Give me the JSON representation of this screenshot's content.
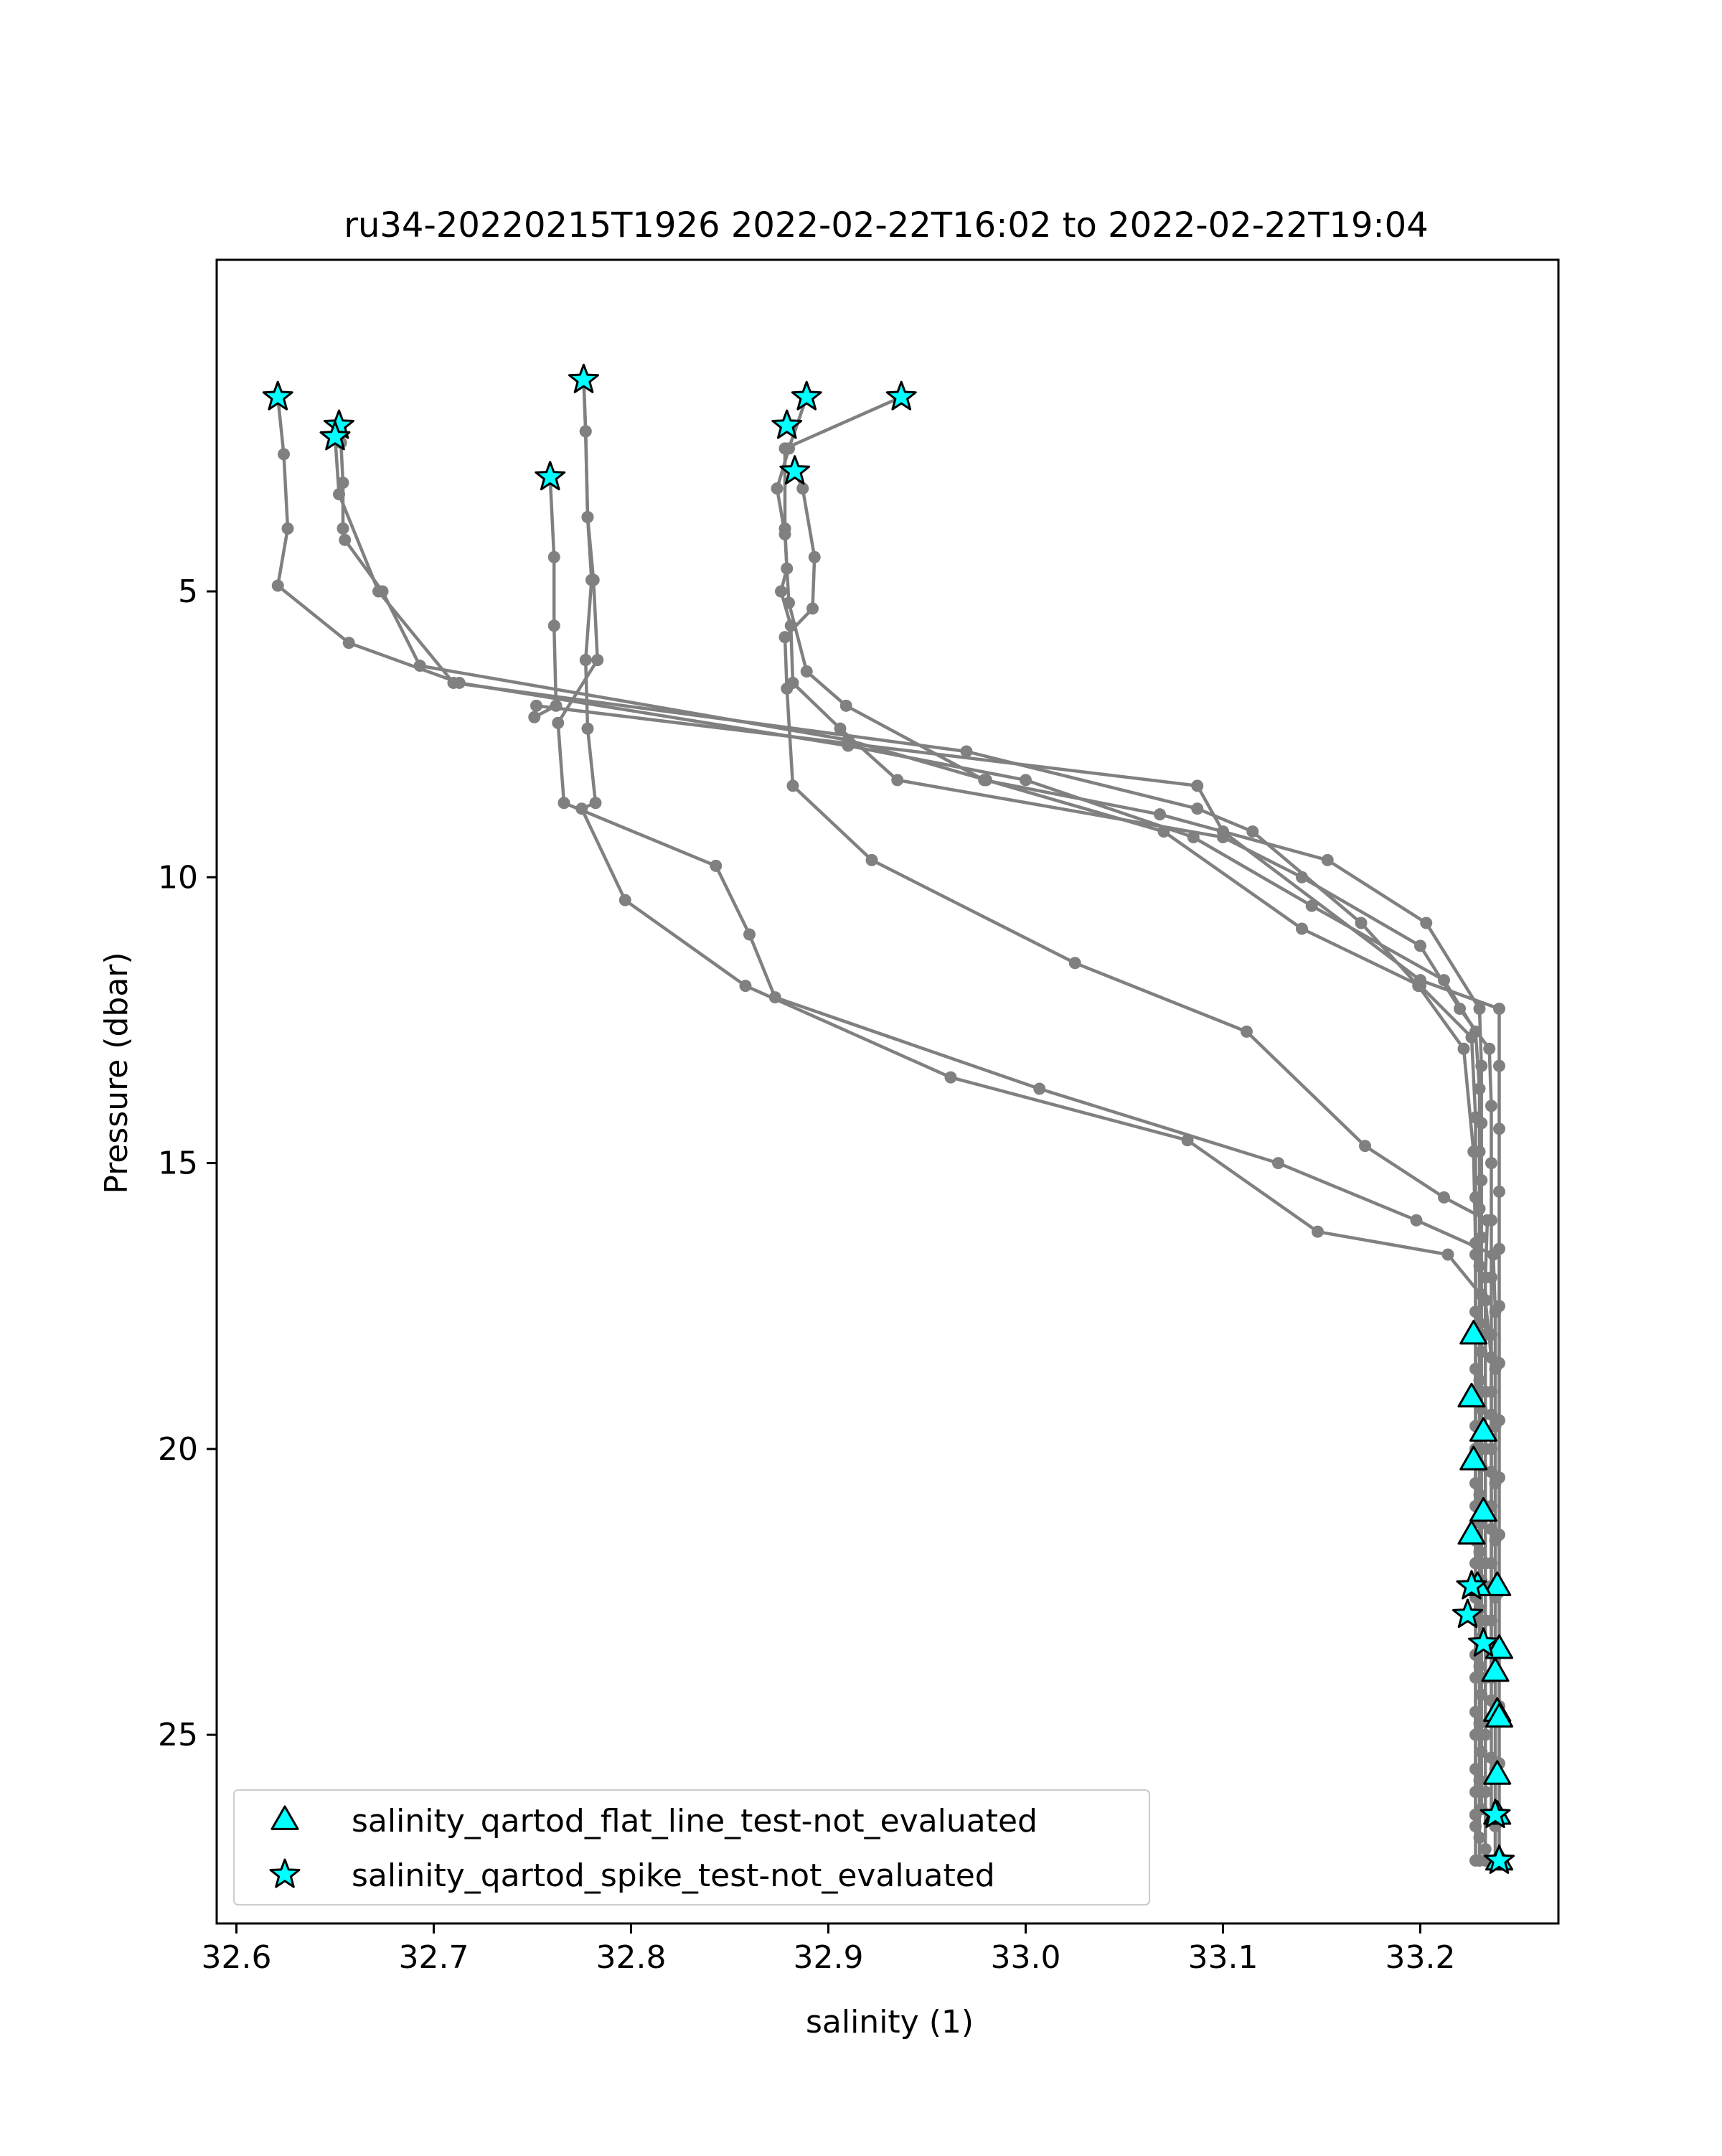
{
  "chart_data": {
    "type": "scatter",
    "title": "ru34-20220215T1926 2022-02-22T16:02 to 2022-02-22T19:04",
    "xlabel": "salinity (1)",
    "ylabel": "Pressure (dbar)",
    "xlim": [
      32.59,
      33.27
    ],
    "ylim": [
      28.3,
      -0.8
    ],
    "y_inverted": true,
    "grid": false,
    "legend_position": "lower-left",
    "xticks": [
      "32.6",
      "32.7",
      "32.8",
      "32.9",
      "33.0",
      "33.1",
      "33.2"
    ],
    "yticks": [
      "5",
      "10",
      "15",
      "20",
      "25"
    ],
    "colors": {
      "profile_line": "#808080",
      "marker_fill": "#00ffff",
      "marker_edge": "#000000"
    },
    "profiles": [
      {
        "name": "",
        "x": [
          32.621,
          32.624,
          32.626,
          32.621,
          32.657,
          32.713,
          32.91,
          33.0,
          33.085,
          33.145,
          33.212,
          33.228,
          33.23,
          33.23,
          33.23,
          33.23,
          33.23,
          33.23,
          33.23,
          33.23,
          33.23,
          33.23,
          33.23,
          33.23,
          33.23,
          33.23,
          33.23,
          33.23
        ],
        "y": [
          1.6,
          2.6,
          3.9,
          4.9,
          5.9,
          6.6,
          7.7,
          8.3,
          9.3,
          10.5,
          11.8,
          12.7,
          13.7,
          14.8,
          15.8,
          16.8,
          17.8,
          18.8,
          19.8,
          20.8,
          21.8,
          22.8,
          23.8,
          24.8,
          25.8,
          26.8,
          27.2,
          27.2
        ]
      },
      {
        "name": "",
        "x": [
          32.652,
          32.653,
          32.654,
          32.654,
          32.655,
          32.674,
          32.693,
          32.91,
          32.98,
          33.07,
          33.14,
          33.2,
          33.226,
          33.228,
          33.228,
          33.228,
          33.228,
          33.228,
          33.228,
          33.228,
          33.228,
          33.228,
          33.228,
          33.228,
          33.228,
          33.228,
          33.228
        ],
        "y": [
          2.1,
          2.4,
          3.1,
          3.9,
          4.1,
          5.0,
          6.3,
          7.6,
          8.3,
          9.2,
          10.9,
          11.9,
          12.8,
          14.2,
          15.6,
          16.6,
          17.6,
          18.6,
          19.6,
          20.6,
          21.6,
          22.6,
          23.6,
          24.6,
          25.6,
          26.6,
          27.2
        ]
      },
      {
        "name": "",
        "x": [
          32.65,
          32.652,
          32.672,
          32.71,
          32.97,
          33.087,
          33.115,
          33.17,
          33.199,
          33.222,
          33.227,
          33.228,
          33.228,
          33.228,
          33.228,
          33.228,
          33.228,
          33.228,
          33.228,
          33.228,
          33.228,
          33.228,
          33.228,
          33.228,
          33.228
        ],
        "y": [
          2.3,
          3.3,
          5.0,
          6.6,
          7.8,
          8.8,
          9.2,
          10.8,
          11.9,
          13.0,
          14.8,
          16.4,
          18.0,
          19.0,
          20.0,
          21.0,
          22.0,
          23.0,
          24.0,
          25.0,
          26.0,
          26.4,
          26.4,
          26.4,
          26.4
        ]
      },
      {
        "name": "",
        "x": [
          32.759,
          32.761,
          32.761,
          32.762,
          32.751,
          32.752,
          33.087,
          33.1,
          33.2,
          33.24,
          33.24,
          33.24,
          33.24,
          33.24,
          33.24,
          33.24,
          33.24,
          33.24,
          33.24,
          33.24,
          33.24,
          33.24,
          33.24,
          33.24,
          33.24
        ],
        "y": [
          3.0,
          4.4,
          5.6,
          7.0,
          7.2,
          7.0,
          8.4,
          9.2,
          11.8,
          12.3,
          13.3,
          14.4,
          15.5,
          16.5,
          17.5,
          18.5,
          19.5,
          20.5,
          21.5,
          22.5,
          23.5,
          24.5,
          25.5,
          26.5,
          27.2
        ]
      },
      {
        "name": "",
        "x": [
          32.776,
          32.777,
          32.778,
          32.78,
          32.777,
          32.778,
          32.782,
          32.775,
          32.797,
          32.858,
          32.962,
          33.082,
          33.148,
          33.214,
          33.233,
          33.236,
          33.236,
          33.236,
          33.236,
          33.236,
          33.236,
          33.236,
          33.236,
          33.236,
          33.236,
          33.236
        ],
        "y": [
          1.3,
          2.2,
          3.7,
          4.8,
          6.2,
          7.4,
          8.7,
          8.8,
          10.4,
          11.9,
          13.5,
          14.6,
          16.2,
          16.6,
          17.4,
          18.4,
          19.4,
          20.4,
          21.4,
          22.4,
          23.4,
          24.4,
          25.4,
          26.4,
          26.4,
          26.4
        ]
      },
      {
        "name": "",
        "x": [
          32.776,
          32.777,
          32.778,
          32.781,
          32.783,
          32.763,
          32.766,
          32.843,
          32.86,
          32.873,
          33.007,
          33.128,
          33.198,
          33.237,
          33.238,
          33.238,
          33.238,
          33.238,
          33.238,
          33.238,
          33.238,
          33.238,
          33.238,
          33.238,
          33.238,
          33.238
        ],
        "y": [
          1.3,
          2.2,
          3.7,
          4.8,
          6.2,
          7.3,
          8.7,
          9.8,
          11.0,
          12.1,
          13.7,
          15.0,
          16.0,
          16.6,
          17.6,
          18.6,
          19.6,
          20.6,
          21.6,
          22.6,
          23.6,
          24.6,
          25.6,
          26.6,
          27.2,
          27.2
        ]
      },
      {
        "name": "",
        "x": [
          32.937,
          32.878,
          32.878,
          32.879,
          32.876,
          32.881,
          32.882,
          32.906,
          32.935,
          33.1,
          33.14,
          33.2,
          33.22,
          33.235,
          33.236,
          33.236,
          33.236,
          33.236,
          33.236,
          33.236,
          33.236,
          33.236,
          33.236,
          33.236,
          33.236
        ],
        "y": [
          1.6,
          2.5,
          3.9,
          4.6,
          5.0,
          5.6,
          6.6,
          7.4,
          8.3,
          9.3,
          10.0,
          11.2,
          12.3,
          13.0,
          14.0,
          15.0,
          16.0,
          17.0,
          18.0,
          19.0,
          20.0,
          21.0,
          22.0,
          23.0,
          24.0
        ]
      },
      {
        "name": "",
        "x": [
          32.889,
          32.88,
          32.874,
          32.878,
          32.88,
          32.889,
          32.909,
          32.979,
          33.068,
          33.153,
          33.203,
          33.23,
          33.231,
          33.231,
          33.231,
          33.231,
          33.231,
          33.231,
          33.231,
          33.231,
          33.231,
          33.231,
          33.231,
          33.231,
          33.231,
          33.231
        ],
        "y": [
          1.6,
          2.5,
          3.2,
          4.0,
          5.2,
          6.4,
          7.0,
          8.3,
          8.9,
          9.7,
          10.8,
          12.3,
          13.3,
          14.3,
          15.3,
          16.3,
          17.3,
          18.3,
          19.3,
          20.3,
          21.3,
          22.3,
          23.3,
          24.3,
          25.3,
          26.3
        ]
      },
      {
        "name": "",
        "x": [
          32.883,
          32.887,
          32.893,
          32.892,
          32.878,
          32.879,
          32.882,
          32.922,
          33.025,
          33.112,
          33.172,
          33.212,
          33.234,
          33.233,
          33.233,
          33.233,
          33.233,
          33.233,
          33.233,
          33.233,
          33.233,
          33.233,
          33.233,
          33.233,
          33.233
        ],
        "y": [
          2.9,
          3.2,
          4.4,
          5.3,
          5.8,
          6.7,
          8.4,
          9.7,
          11.5,
          12.7,
          14.7,
          15.6,
          16.0,
          17.0,
          18.0,
          19.0,
          20.0,
          21.0,
          22.0,
          23.0,
          24.0,
          25.0,
          26.0,
          27.0,
          27.2
        ]
      }
    ],
    "series": [
      {
        "name": "salinity_qartod_flat_line_test-not_evaluated",
        "marker": "triangle",
        "points": [
          [
            33.227,
            18.0
          ],
          [
            33.226,
            19.1
          ],
          [
            33.232,
            19.7
          ],
          [
            33.227,
            20.2
          ],
          [
            33.232,
            21.1
          ],
          [
            33.226,
            21.5
          ],
          [
            33.239,
            22.4
          ],
          [
            33.229,
            22.4
          ],
          [
            33.24,
            23.5
          ],
          [
            33.238,
            23.9
          ],
          [
            33.239,
            24.6
          ],
          [
            33.24,
            24.7
          ],
          [
            33.239,
            25.7
          ],
          [
            33.239,
            26.4
          ],
          [
            33.24,
            27.2
          ]
        ]
      },
      {
        "name": "salinity_qartod_spike_test-not_evaluated",
        "marker": "star",
        "points": [
          [
            32.621,
            1.6
          ],
          [
            32.652,
            2.1
          ],
          [
            32.65,
            2.3
          ],
          [
            32.759,
            3.0
          ],
          [
            32.776,
            1.3
          ],
          [
            32.889,
            1.6
          ],
          [
            32.879,
            2.1
          ],
          [
            32.883,
            2.9
          ],
          [
            32.937,
            1.6
          ],
          [
            33.226,
            22.4
          ],
          [
            33.224,
            22.9
          ],
          [
            33.232,
            23.4
          ],
          [
            33.238,
            26.4
          ],
          [
            33.24,
            27.2
          ]
        ]
      }
    ]
  }
}
